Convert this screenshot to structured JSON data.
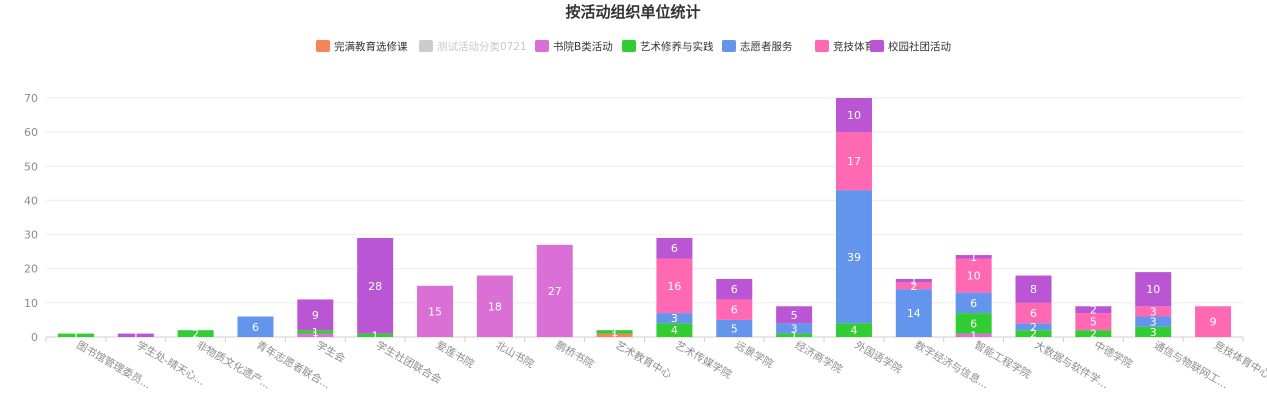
{
  "chart_data": {
    "type": "bar",
    "stacked": true,
    "title": "按活动组织单位统计",
    "legend_position": "top",
    "grid": true,
    "ylim": [
      0,
      70
    ],
    "yticks": [
      0,
      10,
      20,
      30,
      40,
      50,
      60,
      70
    ],
    "categories": [
      "图书馆管理委员...",
      "学生处-晴天心...",
      "非物质文化遗产...",
      "青年志愿者联合...",
      "学生会",
      "学生社团联合会",
      "爱莲书院",
      "北山书院",
      "鹏桥书院",
      "艺术教育中心",
      "艺术传媒学院",
      "远景学院",
      "经济商学院",
      "外国语学院",
      "数字经济与信息...",
      "智能工程学院",
      "大数据与软件学...",
      "中德学院",
      "通信与物联网工...",
      "竞技体育中心"
    ],
    "series": [
      {
        "name": "完满教育选修课",
        "color": "#f5845a",
        "enabled": true,
        "values": [
          0,
          0,
          0,
          0,
          0,
          0,
          0,
          0,
          0,
          1,
          0,
          0,
          0,
          0,
          0,
          0,
          0,
          0,
          0,
          0
        ]
      },
      {
        "name": "测试活动分类0721",
        "color": "#cccccc",
        "enabled": false,
        "values": [
          0,
          0,
          0,
          0,
          0,
          0,
          0,
          0,
          0,
          0,
          0,
          0,
          0,
          0,
          0,
          0,
          0,
          0,
          0,
          0
        ]
      },
      {
        "name": "书院B类活动",
        "color": "#da70d6",
        "enabled": true,
        "values": [
          0,
          0,
          0,
          0,
          1,
          0,
          15,
          18,
          27,
          0,
          0,
          0,
          0,
          0,
          0,
          1,
          0,
          0,
          0,
          0
        ]
      },
      {
        "name": "艺术修养与实践",
        "color": "#32cd32",
        "enabled": true,
        "values": [
          1,
          0,
          2,
          0,
          1,
          1,
          0,
          0,
          0,
          1,
          4,
          0,
          1,
          4,
          0,
          6,
          2,
          2,
          3,
          0
        ]
      },
      {
        "name": "志愿者服务",
        "color": "#6495ed",
        "enabled": true,
        "values": [
          0,
          0,
          0,
          6,
          0,
          0,
          0,
          0,
          0,
          0,
          3,
          5,
          3,
          39,
          14,
          6,
          2,
          0,
          3,
          0
        ]
      },
      {
        "name": "竞技体育",
        "color": "#ff69b4",
        "enabled": true,
        "values": [
          0,
          0,
          0,
          0,
          0,
          0,
          0,
          0,
          0,
          0,
          16,
          6,
          0,
          17,
          2,
          10,
          6,
          5,
          3,
          9
        ]
      },
      {
        "name": "校园社团活动",
        "color": "#ba55d3",
        "enabled": true,
        "values": [
          0,
          1,
          0,
          0,
          9,
          28,
          0,
          0,
          0,
          0,
          6,
          6,
          5,
          10,
          1,
          1,
          8,
          2,
          10,
          0
        ]
      }
    ]
  }
}
